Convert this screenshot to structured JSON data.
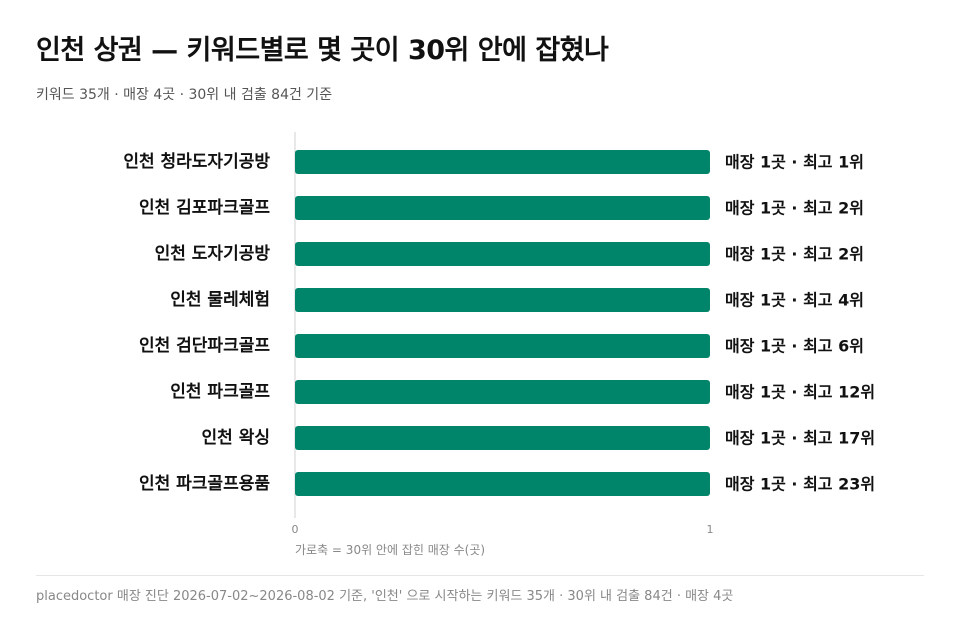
{
  "header": {
    "title": "인천 상권 — 키워드별로 몇 곳이 30위 안에 잡혔나",
    "subtitle": "키워드 35개 · 매장 4곳 · 30위 내 검출 84건 기준"
  },
  "footer": {
    "note": "placedoctor 매장 진단 2026-07-02~2026-08-02 기준, '인천' 으로 시작하는 키워드 35개 · 30위 내 검출 84건 · 매장 4곳"
  },
  "colors": {
    "bar": "#00856a",
    "axis": "#d0d0d0",
    "tick_text": "#888888",
    "label_text": "#111111"
  },
  "chart_data": {
    "type": "bar",
    "orientation": "horizontal",
    "categories": [
      "인천 청라도자기공방",
      "인천 김포파크골프",
      "인천 도자기공방",
      "인천 물레체험",
      "인천 검단파크골프",
      "인천 파크골프",
      "인천 왁싱",
      "인천 파크골프용품"
    ],
    "values": [
      1,
      1,
      1,
      1,
      1,
      1,
      1,
      1
    ],
    "value_labels": [
      "매장 1곳  ·  최고 1위",
      "매장 1곳  ·  최고 2위",
      "매장 1곳  ·  최고 2위",
      "매장 1곳  ·  최고 4위",
      "매장 1곳  ·  최고 6위",
      "매장 1곳  ·  최고 12위",
      "매장 1곳  ·  최고 17위",
      "매장 1곳  ·  최고 23위"
    ],
    "xlim": [
      0,
      1
    ],
    "xticks": [
      "0",
      "1"
    ],
    "xlabel": "가로축 = 30위 안에 잡힌 매장 수(곳)",
    "grid": false
  }
}
